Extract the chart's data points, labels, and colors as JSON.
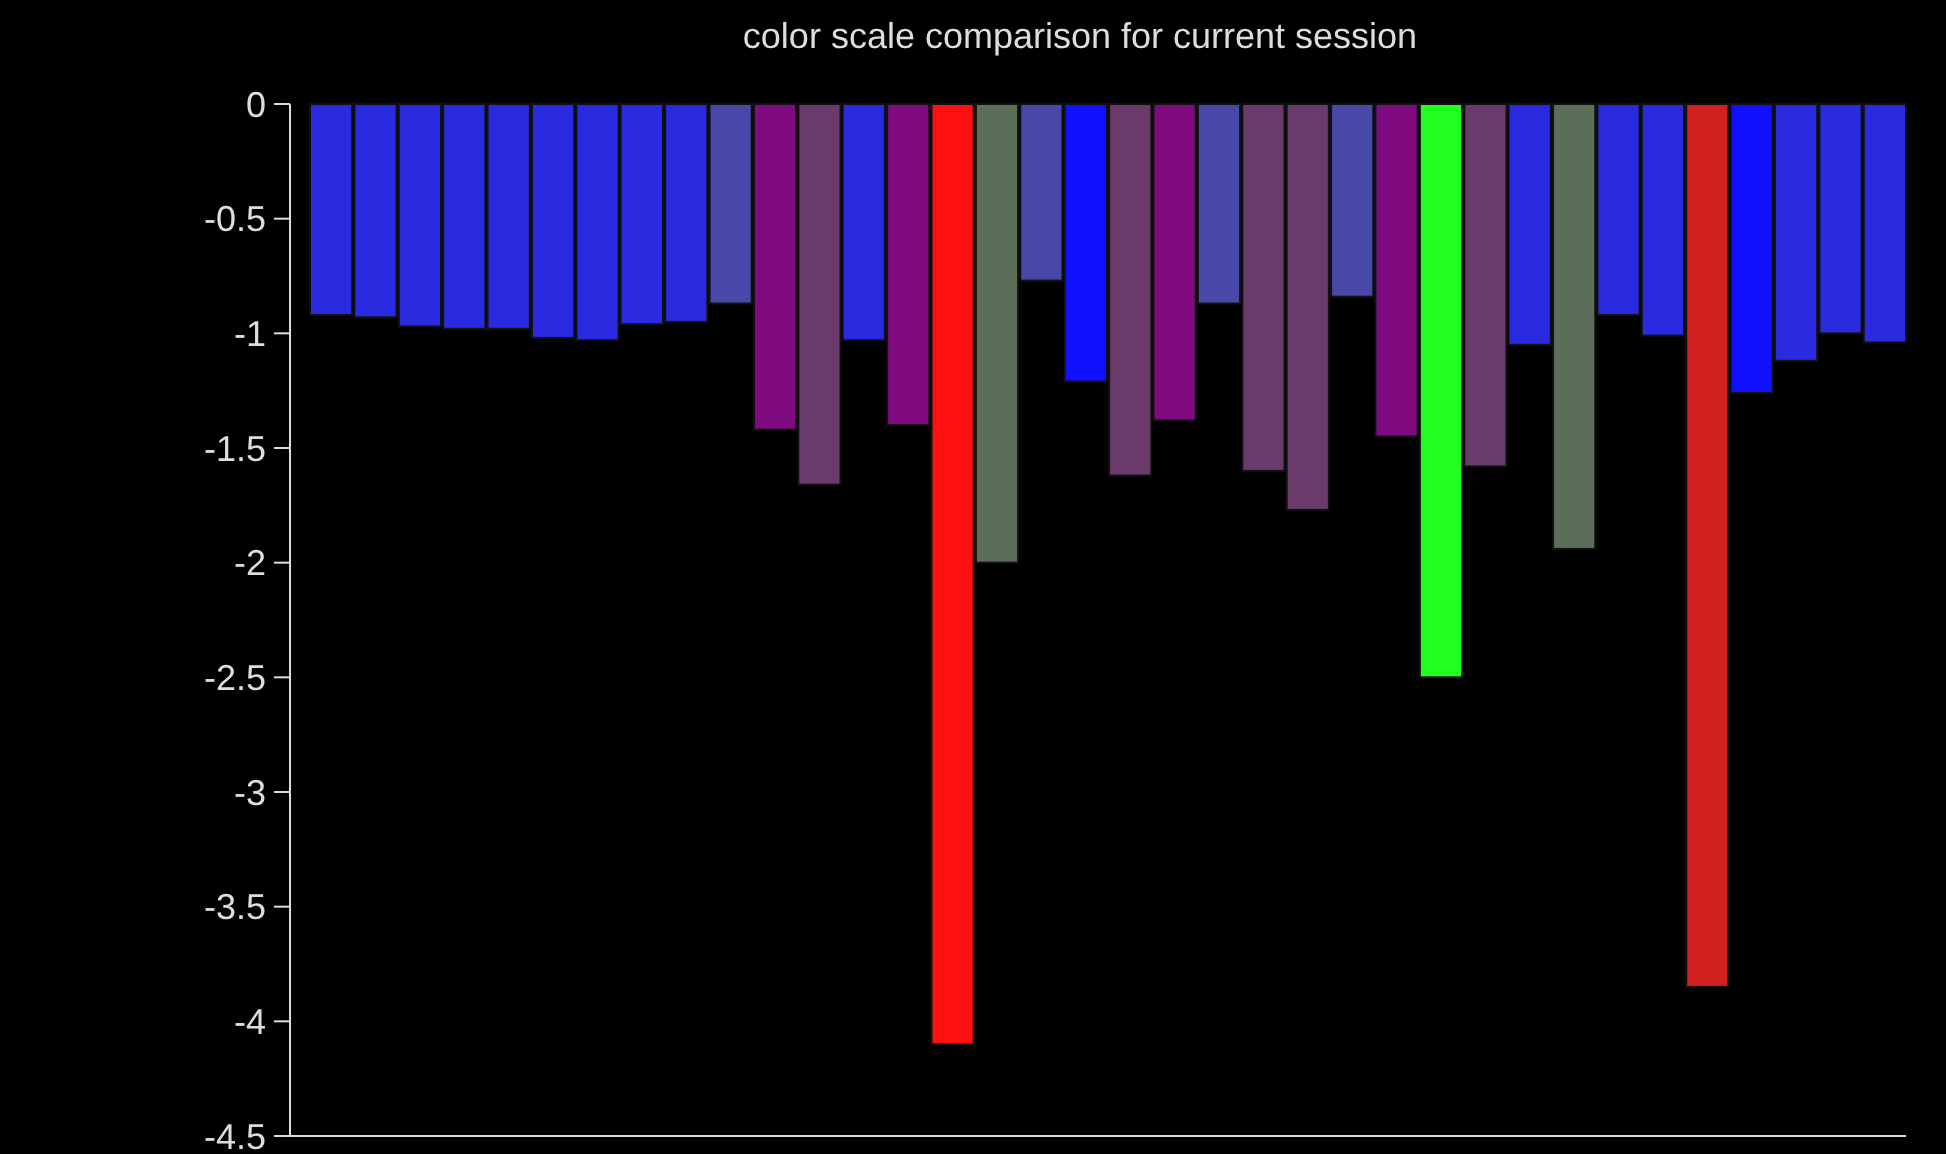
{
  "chart_data": {
    "type": "bar",
    "title": "color scale comparison for current session",
    "categories": [
      null,
      null,
      null,
      null,
      null,
      null,
      null,
      null,
      null,
      null,
      null,
      null,
      null,
      null,
      null,
      null,
      null,
      null,
      null,
      null,
      null,
      null,
      null,
      null,
      null,
      null,
      null,
      null,
      null,
      null,
      null,
      null,
      null,
      null,
      null,
      null
    ],
    "values": [
      -0.92,
      -0.93,
      -0.97,
      -0.98,
      -0.98,
      -1.02,
      -1.03,
      -0.96,
      -0.95,
      -0.87,
      -1.42,
      -1.66,
      -1.03,
      -1.4,
      -4.1,
      -2.0,
      -0.77,
      -1.21,
      -1.62,
      -1.38,
      -0.87,
      -1.6,
      -1.77,
      -0.84,
      -1.45,
      -2.5,
      -1.58,
      -1.05,
      -1.94,
      -0.92,
      -1.01,
      -3.85,
      -1.26,
      -1.12,
      -1.0,
      -1.04
    ],
    "colors": [
      "#2a2ae0",
      "#2a2ae0",
      "#2a2ae0",
      "#2a2ae0",
      "#2a2ae0",
      "#2a2ae0",
      "#2a2ae0",
      "#2a2ae0",
      "#2a2ae0",
      "#4848a8",
      "#800a80",
      "#6a3a6a",
      "#2a2ae0",
      "#800a80",
      "#ff1010",
      "#5a6e5a",
      "#4848a8",
      "#1010ff",
      "#6a3a6a",
      "#800a80",
      "#4848a8",
      "#6a3a6a",
      "#6a3a6a",
      "#4848a8",
      "#800a80",
      "#20ff20",
      "#6a3a6a",
      "#2a2ae0",
      "#5a6e5a",
      "#2a2ae0",
      "#2a2ae0",
      "#d02020",
      "#1010ff",
      "#2a2ae0",
      "#2a2ae0",
      "#2a2ae0"
    ],
    "ylim": [
      -4.5,
      0
    ],
    "yticks": [
      0,
      -0.5,
      -1,
      -1.5,
      -2,
      -2.5,
      -3,
      -3.5,
      -4,
      -4.5
    ],
    "tick_labels": "y",
    "grid": false
  }
}
